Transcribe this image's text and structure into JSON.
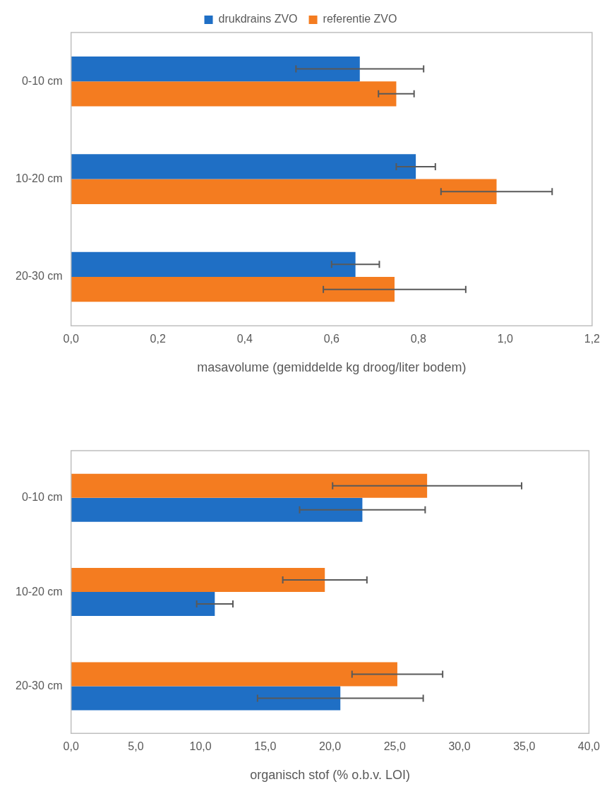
{
  "chart_data": [
    {
      "type": "bar",
      "orientation": "horizontal",
      "xlabel": "masavolume (gemiddelde kg droog/liter bodem)",
      "categories": [
        "0-10 cm",
        "10-20 cm",
        "20-30 cm"
      ],
      "series": [
        {
          "name": "drukdrains ZVO",
          "color": "#1f6fc5",
          "values": [
            0.665,
            0.794,
            0.655
          ],
          "errors": [
            0.147,
            0.045,
            0.055
          ]
        },
        {
          "name": "referentie ZVO",
          "color": "#f47c20",
          "values": [
            0.749,
            0.98,
            0.745
          ],
          "errors": [
            0.041,
            0.128,
            0.164
          ]
        }
      ],
      "xlim": [
        0,
        1.2
      ],
      "xticks": [
        {
          "value": 0,
          "label": "0,0"
        },
        {
          "value": 0.2,
          "label": "0,2"
        },
        {
          "value": 0.4,
          "label": "0,4"
        },
        {
          "value": 0.6,
          "label": "0,6"
        },
        {
          "value": 0.8,
          "label": "0,8"
        },
        {
          "value": 1.0,
          "label": "1,0"
        },
        {
          "value": 1.2,
          "label": "1,2"
        }
      ],
      "grid": false,
      "legend": "top"
    },
    {
      "type": "bar",
      "orientation": "horizontal",
      "xlabel": "organisch stof (% o.b.v. LOI)",
      "categories": [
        "0-10 cm",
        "10-20 cm",
        "20-30 cm"
      ],
      "series": [
        {
          "color": "#f47c20",
          "values": [
            27.5,
            19.6,
            25.2
          ],
          "errors": [
            7.3,
            3.25,
            3.5
          ]
        },
        {
          "color": "#1f6fc5",
          "values": [
            22.5,
            11.1,
            20.8
          ],
          "errors": [
            4.85,
            1.4,
            6.4
          ]
        }
      ],
      "xlim": [
        0,
        40
      ],
      "xticks": [
        {
          "value": 0,
          "label": "0,0"
        },
        {
          "value": 5,
          "label": "5,0"
        },
        {
          "value": 10,
          "label": "10,0"
        },
        {
          "value": 15,
          "label": "15,0"
        },
        {
          "value": 20,
          "label": "20,0"
        },
        {
          "value": 25,
          "label": "25,0"
        },
        {
          "value": 30,
          "label": "30,0"
        },
        {
          "value": 35,
          "label": "35,0"
        },
        {
          "value": 40,
          "label": "40,0"
        }
      ],
      "grid": false
    }
  ]
}
